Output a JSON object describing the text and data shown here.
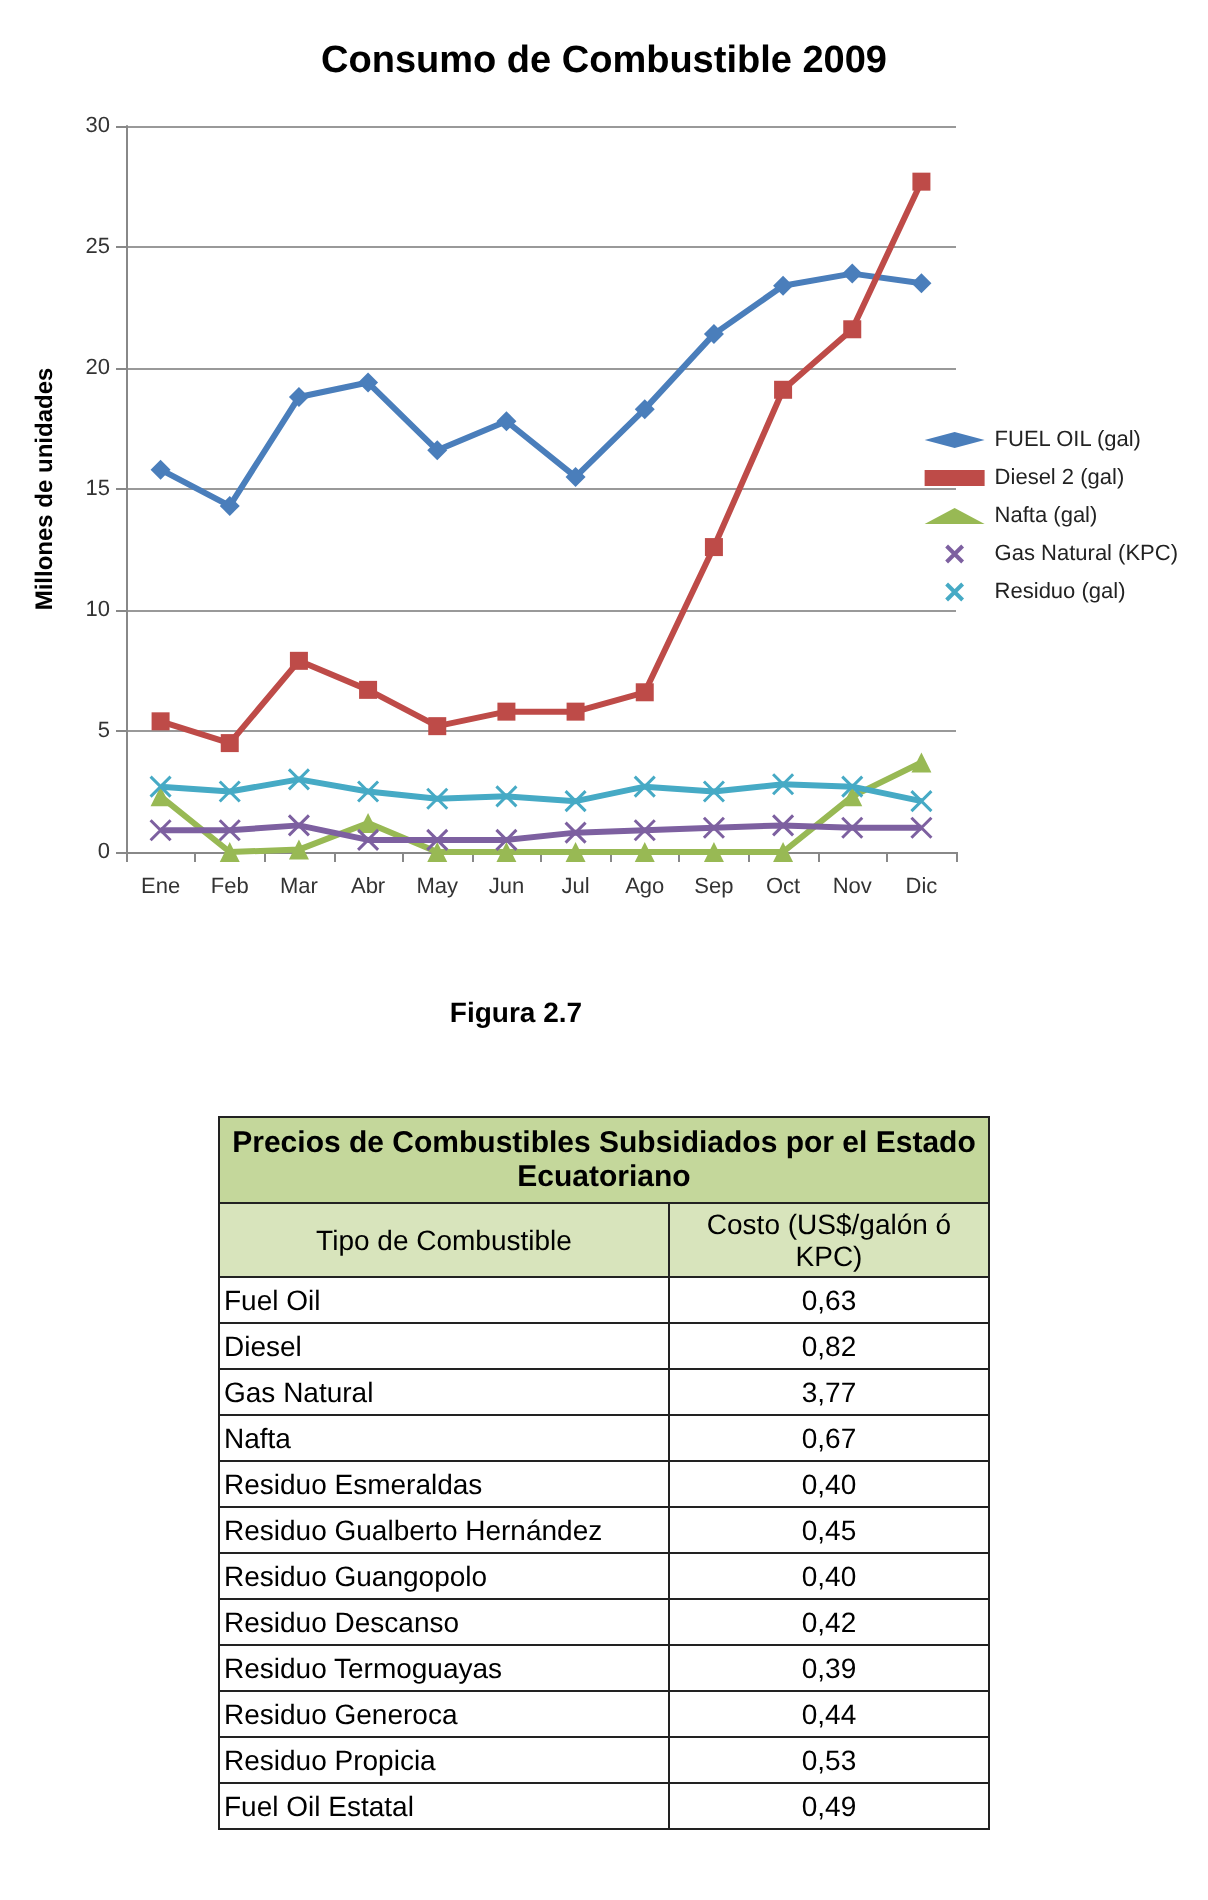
{
  "chart_data": [
    {
      "type": "line",
      "title": "Consumo de Combustible 2009",
      "ylabel": "Millones de unidades",
      "categories": [
        "Ene",
        "Feb",
        "Mar",
        "Abr",
        "May",
        "Jun",
        "Jul",
        "Ago",
        "Sep",
        "Oct",
        "Nov",
        "Dic"
      ],
      "series": [
        {
          "name": "FUEL OIL (gal)",
          "color": "#4a7ebb",
          "marker": "diamond",
          "values": [
            15.8,
            14.3,
            18.8,
            19.4,
            16.6,
            17.8,
            15.5,
            18.3,
            21.4,
            23.4,
            23.9,
            23.5
          ]
        },
        {
          "name": "Diesel 2 (gal)",
          "color": "#be4b48",
          "marker": "square",
          "values": [
            5.4,
            4.5,
            7.9,
            6.7,
            5.2,
            5.8,
            5.8,
            6.6,
            12.6,
            19.1,
            21.6,
            27.7
          ]
        },
        {
          "name": "Nafta (gal)",
          "color": "#98b954",
          "marker": "triangle",
          "values": [
            2.3,
            0,
            0.1,
            1.2,
            0,
            0,
            0,
            0,
            0,
            0,
            2.3,
            3.7
          ]
        },
        {
          "name": "Gas Natural (KPC)",
          "color": "#7d60a0",
          "marker": "cross",
          "values": [
            0.9,
            0.9,
            1.1,
            0.5,
            0.5,
            0.5,
            0.8,
            0.9,
            1.0,
            1.1,
            1.0,
            1.0
          ]
        },
        {
          "name": "Residuo (gal)",
          "color": "#46aac5",
          "marker": "cross",
          "values": [
            2.7,
            2.5,
            3.0,
            2.5,
            2.2,
            2.3,
            2.1,
            2.7,
            2.5,
            2.8,
            2.7,
            2.1
          ]
        }
      ],
      "ylim": [
        0,
        30
      ],
      "yticks": [
        0,
        5,
        10,
        15,
        20,
        25,
        30
      ],
      "grid": "y",
      "legend": "right",
      "annotations": [
        "Figura 2.7"
      ]
    },
    {
      "type": "other",
      "title": "Precios de Combustibles Subsidiados por el Estado Ecuatoriano",
      "xlabel": "Tipo de Combustible",
      "ylabel": "Costo (US$/galón ó KPC)",
      "categories": [
        "Fuel Oil",
        "Diesel",
        "Gas Natural",
        "Nafta",
        "Residuo Esmeraldas",
        "Residuo Gualberto Hernández",
        "Residuo Guangopolo",
        "Residuo Descanso",
        "Residuo Termoguayas",
        "Residuo Generoca",
        "Residuo Propicia",
        "Fuel Oil Estatal"
      ],
      "value_labels": [
        "0,63",
        "0,82",
        "3,77",
        "0,67",
        "0,40",
        "0,45",
        "0,40",
        "0,42",
        "0,39",
        "0,44",
        "0,53",
        "0,49"
      ]
    }
  ]
}
